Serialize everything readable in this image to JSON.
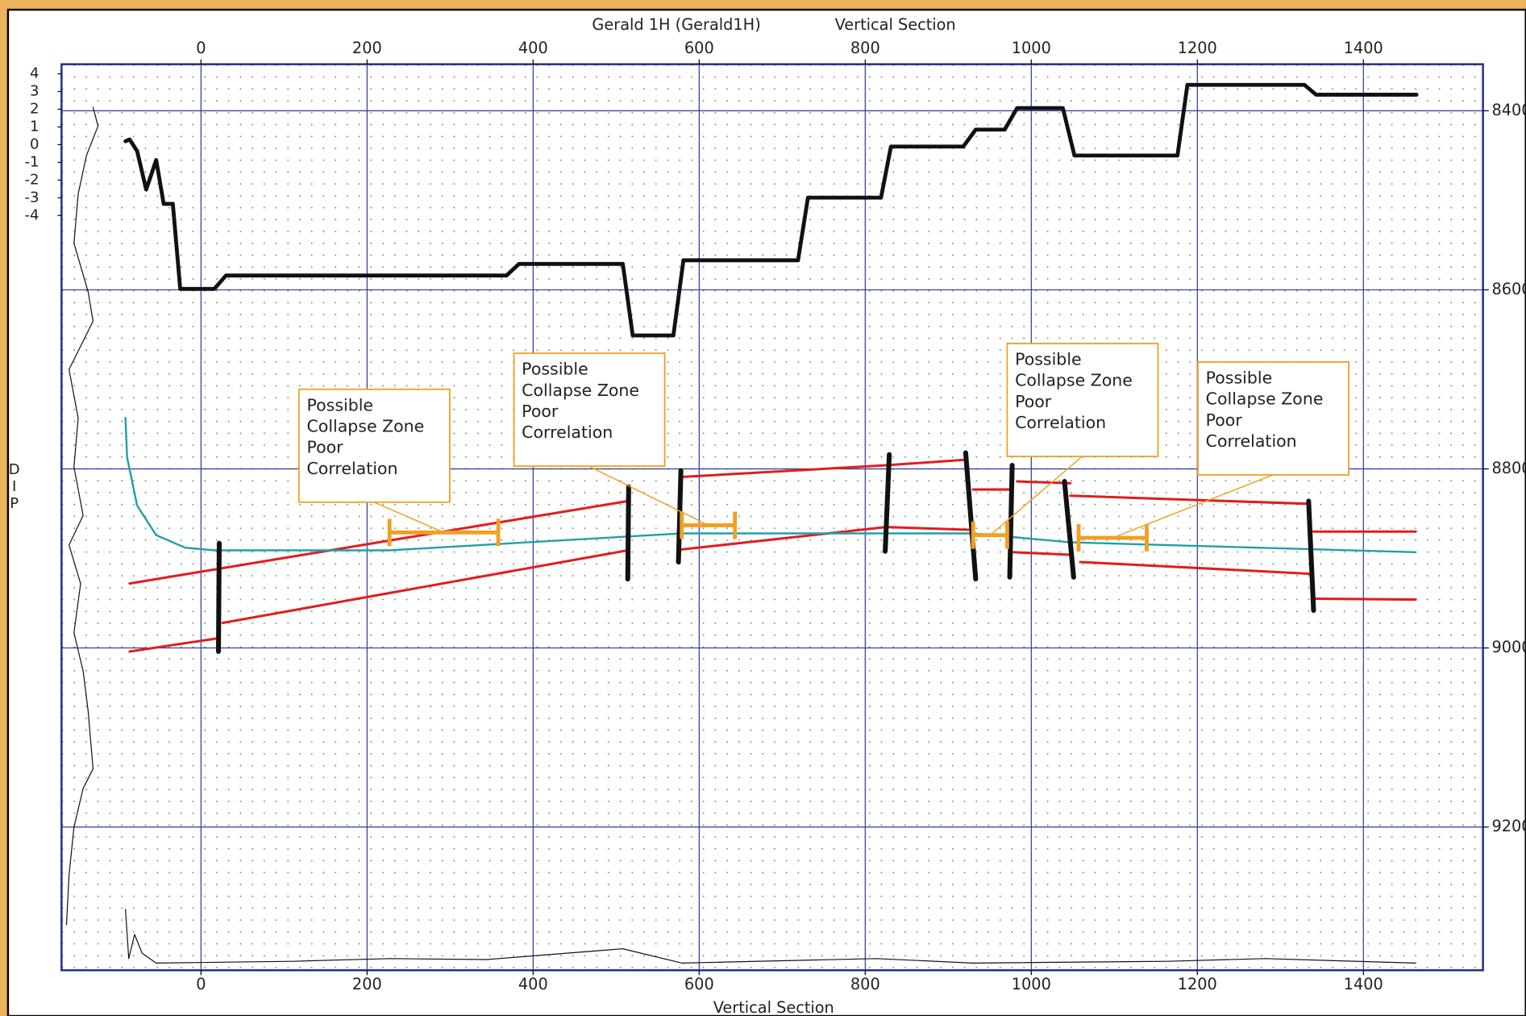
{
  "chart_data": {
    "type": "line",
    "title": "Gerald 1H (Gerald1H)",
    "subtitle": "Vertical Section",
    "xlabel": "Vertical Section",
    "y2label": "DIP",
    "xlim": [
      -168,
      1544
    ],
    "xticks": [
      0,
      200,
      400,
      600,
      800,
      1000,
      1200,
      1400
    ],
    "ylim": [
      8348,
      9360
    ],
    "yticks": [
      8400,
      8600,
      8800,
      9000,
      9200
    ],
    "y2lim": [
      4.54,
      -46.6
    ],
    "y2ticks": [
      4,
      3,
      2,
      1,
      0,
      -1,
      -2,
      -3,
      -4
    ],
    "grid": true,
    "minor_grid": true,
    "series": [
      {
        "color": "#111111",
        "line_width": 1,
        "x": [
          -130,
          -124,
          -138,
          -148,
          -153,
          -136,
          -130,
          -159,
          -148,
          -153,
          -142,
          -159,
          -145,
          -153,
          -142,
          -136,
          -130,
          -142,
          -153,
          -159,
          -162
        ],
        "values": [
          8396,
          8417,
          8450,
          8493,
          8548,
          8602,
          8635,
          8689,
          8743,
          8798,
          8852,
          8885,
          8928,
          8983,
          9026,
          9070,
          9135,
          9157,
          9200,
          9254,
          9309
        ]
      },
      {
        "color": "#111111",
        "line_width": 1,
        "x": [
          -91,
          -87,
          -80,
          -71,
          -54,
          110,
          227,
          344,
          508,
          579,
          813,
          930,
          1164,
          1282,
          1463
        ],
        "values": [
          9292,
          9347,
          9320,
          9341,
          9352,
          9350,
          9347,
          9348,
          9336,
          9352,
          9347,
          9352,
          9350,
          9347,
          9352
        ]
      },
      {
        "color": "#e01e1e",
        "line_width": 2.5,
        "x": [
          -86,
          514,
          null,
          579,
          825,
          918,
          null,
          930,
          977,
          null,
          983,
          1047,
          null,
          1047,
          1334,
          null,
          1340,
          1463
        ],
        "values": [
          8928,
          8836,
          null,
          8809,
          8796,
          8790,
          null,
          8823,
          8823,
          null,
          8814,
          8816,
          null,
          8830,
          8839,
          null,
          8870,
          8870
        ]
      },
      {
        "color": "#e01e1e",
        "line_width": 2.5,
        "x": [
          -86,
          22,
          null,
          26,
          514,
          null,
          579,
          825,
          924,
          null,
          977,
          1047,
          null,
          1059,
          1334,
          null,
          1340,
          1463
        ],
        "values": [
          9004,
          8989,
          null,
          8972,
          8891,
          null,
          8890,
          8865,
          8868,
          null,
          8893,
          8896,
          null,
          8904,
          8917,
          null,
          8945,
          8946
        ]
      },
      {
        "color": "#1fa0a8",
        "line_width": 2,
        "x": [
          -91,
          -89,
          -77,
          -54,
          -19,
          16,
          227,
          579,
          930,
          1047,
          1463
        ],
        "values": [
          8743,
          8787,
          8841,
          8874,
          8888,
          8891,
          8891,
          8872,
          8872,
          8882,
          8893
        ]
      },
      {
        "color": "#111111",
        "line_width": 5,
        "x": [
          22,
          21,
          null,
          515,
          514,
          null,
          578,
          575,
          null,
          829,
          824,
          null,
          921,
          933,
          null,
          977,
          974,
          null,
          1040,
          1051,
          null,
          1334,
          1340
        ],
        "values": [
          8883,
          9004,
          null,
          8820,
          8923,
          null,
          8802,
          8904,
          null,
          8784,
          8892,
          null,
          8782,
          8923,
          null,
          8796,
          8921,
          null,
          8814,
          8921,
          null,
          8836,
          8958
        ]
      },
      {
        "color": "#111111",
        "line_width": 4,
        "x": [
          -91,
          -86,
          -77,
          -66,
          -54,
          -45,
          -34,
          -25,
          16,
          30,
          368,
          383,
          508,
          520,
          569,
          581,
          719,
          731,
          819,
          831,
          918,
          933,
          968,
          983,
          1038,
          1052,
          1176,
          1188,
          1329,
          1343,
          1464
        ],
        "values": [
          8434,
          8432,
          8445,
          8488,
          8455,
          8504,
          8504,
          8599,
          8599,
          8584,
          8584,
          8571,
          8571,
          8651,
          8651,
          8567,
          8567,
          8497,
          8497,
          8440,
          8440,
          8421,
          8421,
          8397,
          8397,
          8450,
          8450,
          8371,
          8371,
          8382,
          8382
        ]
      }
    ],
    "zones": [
      {
        "x": [
          227,
          358
        ],
        "depth": 8871
      },
      {
        "x": [
          579,
          643
        ],
        "depth": 8863
      },
      {
        "x": [
          930,
          971
        ],
        "depth": 8874
      },
      {
        "x": [
          1057,
          1139
        ],
        "depth": 8877
      }
    ],
    "zone_color": "#f0a020",
    "annotations": [
      {
        "lines": [
          "Possible",
          "Collapse Zone",
          "Poor",
          "Correlation"
        ]
      },
      {
        "lines": [
          "Possible",
          "Collapse Zone",
          "Poor",
          "Correlation"
        ]
      },
      {
        "lines": [
          "Possible",
          "Collapse Zone",
          "Poor",
          "Correlation"
        ]
      },
      {
        "lines": [
          "Possible",
          "Collapse Zone",
          "Poor",
          "Correlation"
        ]
      }
    ]
  }
}
